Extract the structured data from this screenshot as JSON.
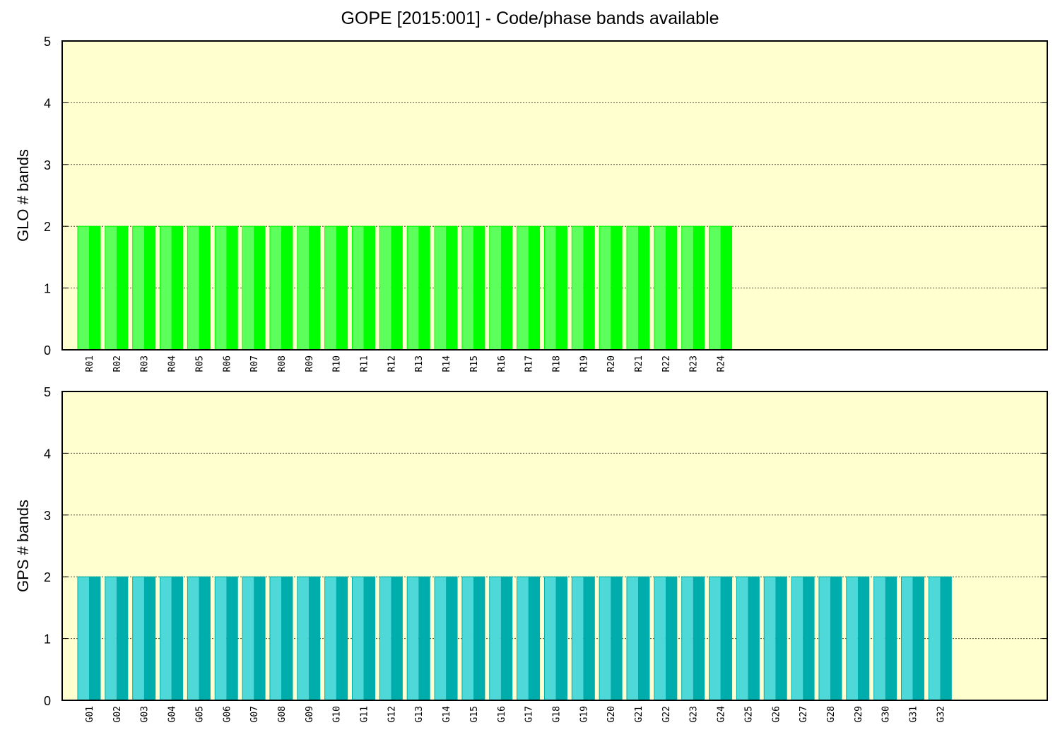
{
  "title": "GOPE [2015:001] - Code/phase bands available",
  "chart_data": [
    {
      "type": "bar",
      "ylabel": "GLO # bands",
      "ylim": [
        0,
        5
      ],
      "yticks": [
        0,
        1,
        2,
        3,
        4,
        5
      ],
      "grid": true,
      "background": "#ffffd0",
      "bar_color_light": "#5cff5c",
      "bar_color_dark": "#00ff00",
      "categories": [
        "R01",
        "R02",
        "R03",
        "R04",
        "R05",
        "R06",
        "R07",
        "R08",
        "R09",
        "R10",
        "R11",
        "R12",
        "R13",
        "R14",
        "R15",
        "R16",
        "R17",
        "R18",
        "R19",
        "R20",
        "R21",
        "R22",
        "R23",
        "R24"
      ],
      "values": [
        2,
        2,
        2,
        2,
        2,
        2,
        2,
        2,
        2,
        2,
        2,
        2,
        2,
        2,
        2,
        2,
        2,
        2,
        2,
        2,
        2,
        2,
        2,
        2
      ]
    },
    {
      "type": "bar",
      "ylabel": "GPS # bands",
      "ylim": [
        0,
        5
      ],
      "yticks": [
        0,
        1,
        2,
        3,
        4,
        5
      ],
      "grid": true,
      "background": "#ffffd0",
      "bar_color_light": "#4ed8d8",
      "bar_color_dark": "#00adad",
      "categories": [
        "G01",
        "G02",
        "G03",
        "G04",
        "G05",
        "G06",
        "G07",
        "G08",
        "G09",
        "G10",
        "G11",
        "G12",
        "G13",
        "G14",
        "G15",
        "G16",
        "G17",
        "G18",
        "G19",
        "G20",
        "G21",
        "G22",
        "G23",
        "G24",
        "G25",
        "G26",
        "G27",
        "G28",
        "G29",
        "G30",
        "G31",
        "G32"
      ],
      "values": [
        2,
        2,
        2,
        2,
        2,
        2,
        2,
        2,
        2,
        2,
        2,
        2,
        2,
        2,
        2,
        2,
        2,
        2,
        2,
        2,
        2,
        2,
        2,
        2,
        2,
        2,
        2,
        2,
        2,
        2,
        2,
        2
      ]
    }
  ]
}
